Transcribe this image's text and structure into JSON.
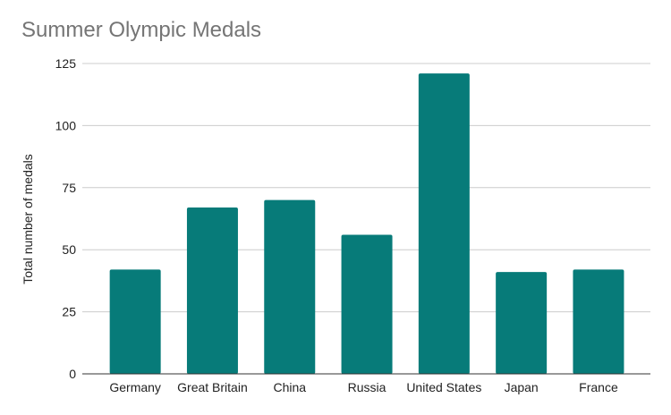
{
  "chart_data": {
    "type": "bar",
    "title": "Summer Olympic Medals",
    "xlabel": "",
    "ylabel": "Total number of medals",
    "categories": [
      "Germany",
      "Great Britain",
      "China",
      "Russia",
      "United States",
      "Japan",
      "France"
    ],
    "values": [
      42,
      67,
      70,
      56,
      121,
      41,
      42
    ],
    "ylim": [
      0,
      125
    ],
    "yticks": [
      0,
      25,
      50,
      75,
      100,
      125
    ],
    "grid": true,
    "legend": "none",
    "bar_color": "#077b79"
  }
}
